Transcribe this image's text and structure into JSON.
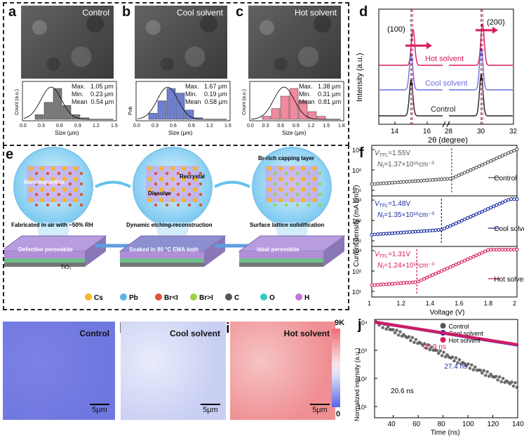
{
  "panels": {
    "a": "a",
    "b": "b",
    "c": "c",
    "d": "d",
    "e": "e",
    "f": "f",
    "g": "g",
    "h": "h",
    "i": "i",
    "j": "j"
  },
  "sem": [
    {
      "label": "Control",
      "stats": {
        "max": "Max.   1.05 μm",
        "min": "Min.    0.23 μm",
        "mean": "Mean  0.54 μm"
      },
      "axis_label": "Size (μm)",
      "ylabel": "Count (a.u.)",
      "ticks": [
        "0.0",
        "0.3",
        "0.6",
        "0.9",
        "1.2",
        "1.5"
      ],
      "bars": [
        0.15,
        0.55,
        1.0,
        0.45,
        0.15,
        0.05
      ],
      "color": "#7a7a7a"
    },
    {
      "label": "Cool solvent",
      "stats": {
        "max": "Max.   1.67 μm",
        "min": "Min.    0.19 μm",
        "mean": "Mean  0.58 μm"
      },
      "axis_label": "Size (μm)",
      "ylabel": "Pob",
      "ticks": [
        "0.0",
        "0.3",
        "0.6",
        "0.9",
        "1.2",
        "1.5"
      ],
      "bars": [
        0.2,
        0.6,
        1.0,
        0.85,
        0.3,
        0.05
      ],
      "color": "#6f7fcf"
    },
    {
      "label": "Hot solvent",
      "stats": {
        "max": "Max.   1.38 μm",
        "min": "Min.    0.31 μm",
        "mean": "Mean  0.81 μm"
      },
      "axis_label": "Size (μm)",
      "ylabel": "Count (a.u.)",
      "ticks": [
        "0.0",
        "0.3",
        "0.6",
        "0.9",
        "1.2",
        "1.5",
        "1.8"
      ],
      "bars": [
        0.1,
        0.35,
        0.75,
        1.0,
        0.6,
        0.25,
        0.1
      ],
      "color": "#f08a9f"
    }
  ],
  "xrd": {
    "xlabel": "2θ (degree)",
    "ylabel": "Intensity (a.u.)",
    "xticks": [
      "14",
      "16",
      "28",
      "30",
      "32"
    ],
    "peak100": "(100)",
    "peak200": "(200)",
    "series": [
      {
        "name": "Hot solvent",
        "color": "#d81b60"
      },
      {
        "name": "Cool solvent",
        "color": "#6b6fe0"
      },
      {
        "name": "Control",
        "color": "#222222"
      }
    ]
  },
  "schematic": {
    "labels": {
      "nano": "Nanoimpurities",
      "recrystal": "Recrystal",
      "dissolve": "Dissolve",
      "capping": "Br-rich capping layer"
    },
    "steps": [
      "Fabricated in air with ~50% RH",
      "Dynamic etching-reconstruction",
      "Surface lattice solidification"
    ],
    "films": [
      "Defective perovskite",
      "Soaked in 80 °C EMA bath",
      "Ideal perovskite"
    ],
    "tio2": "TiO₂",
    "legend": [
      {
        "label": "Cs",
        "color": "#f2b72a"
      },
      {
        "label": "Pb",
        "color": "#5ab4e6"
      },
      {
        "label": "Br<I",
        "color": "#e0533a"
      },
      {
        "label": "Br>I",
        "color": "#9ad24a"
      },
      {
        "label": "C",
        "color": "#555555"
      },
      {
        "label": "O",
        "color": "#2fd0c0"
      },
      {
        "label": "H",
        "color": "#c274d8"
      }
    ]
  },
  "sclc": {
    "ylabel": "Current density (mA cm⁻²)",
    "xlabel": "Voltage (V)",
    "xticks": [
      "1",
      "1.2",
      "1.4",
      "1.6",
      "1.8",
      "2"
    ],
    "yticks": [
      "10¹",
      "10²",
      "10³"
    ],
    "panels": [
      {
        "name": "Control",
        "vtfl_sub": "TFL",
        "vtfl_val": "=1.55V",
        "nt_sub": "t",
        "nt_val": "=1.37×10¹⁶cm⁻³",
        "color": "#555555",
        "vline": 1.55
      },
      {
        "name": "Cool solvent",
        "vtfl_sub": "TFL",
        "vtfl_val": "=1.48V",
        "nt_sub": "t",
        "nt_val": "=1.35×10¹⁶cm⁻³",
        "color": "#1a2ca0",
        "vline": 1.48
      },
      {
        "name": "Hot solvent",
        "vtfl_sub": "TFL",
        "vtfl_val": "=1.31V",
        "nt_sub": "t",
        "nt_val": "=1.24×10¹⁶cm⁻³",
        "color": "#d81b60",
        "vline": 1.31
      }
    ]
  },
  "pl": [
    {
      "label": "Control",
      "scale": "5μm",
      "colors": [
        "#7b82e6",
        "#6f78e0"
      ]
    },
    {
      "label": "Cool solvent",
      "scale": "5μm",
      "colors": [
        "#e9ecfb",
        "#c9cff3"
      ]
    },
    {
      "label": "Hot solvent",
      "scale": "5μm",
      "colors": [
        "#f6c3c3",
        "#ef8f93"
      ]
    }
  ],
  "colorbar": {
    "top": "9K",
    "bottom": "0"
  },
  "trpl": {
    "ylabel": "Normalized intensity (a.u.)",
    "xlabel": "Time (ns)",
    "xticks": [
      "40",
      "60",
      "80",
      "100",
      "120",
      "140"
    ],
    "yticks": [
      "10¹",
      "10²",
      "10³",
      "10⁴"
    ],
    "series": [
      {
        "name": "Control",
        "tau": "20.6 ns",
        "color": "#555555"
      },
      {
        "name": "Cool solvent",
        "tau": "27.4 ns",
        "color": "#1a2ca0"
      },
      {
        "name": "Hot solvent",
        "tau": "27.9 ns",
        "color": "#d81b60"
      }
    ]
  }
}
